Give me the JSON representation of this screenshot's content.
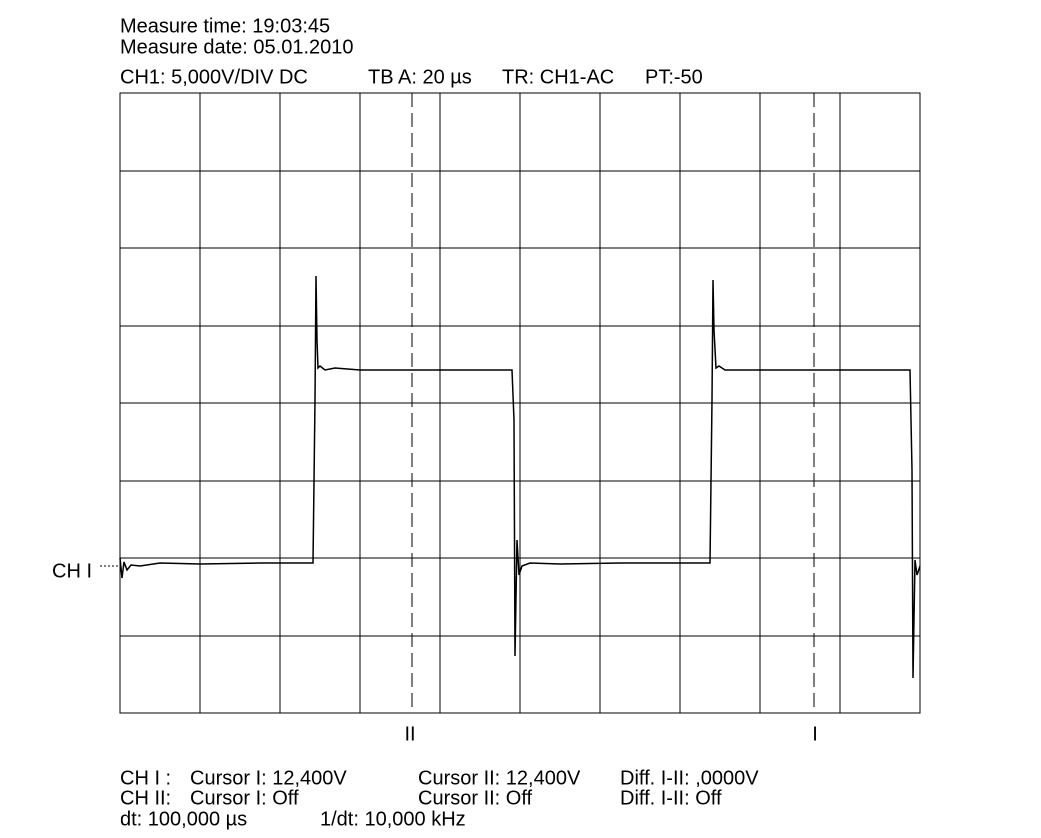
{
  "header": {
    "measure_time": "Measure time: 19:03:45",
    "measure_date": "Measure date: 05.01.2010",
    "settings": [
      "CH1: 5,000V/DIV DC",
      "TB A: 20 µs",
      "TR: CH1-AC",
      "PT:-50"
    ]
  },
  "screen": {
    "channel_marker": "CH I",
    "cursor_labels": [
      "II",
      "I"
    ]
  },
  "readout": {
    "rows": [
      [
        "CH I :",
        "Cursor I: 12,400V",
        "Cursor II: 12,400V",
        "Diff. I-II: ,0000V"
      ],
      [
        "CH II:",
        "Cursor I: Off",
        "Cursor II: Off",
        "Diff. I-II: Off"
      ],
      [
        "dt: 100,000 µs",
        "1/dt: 10,000 kHz"
      ]
    ]
  }
}
